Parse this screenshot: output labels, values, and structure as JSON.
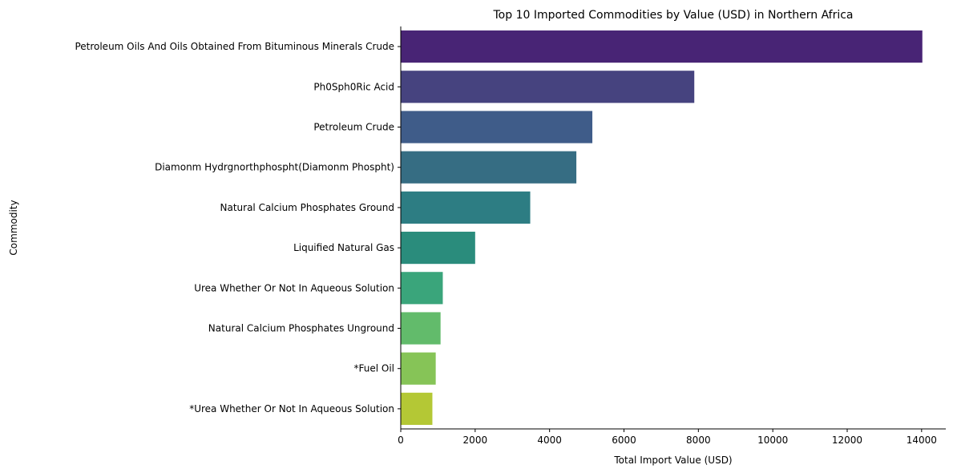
{
  "chart_data": {
    "type": "bar",
    "orientation": "horizontal",
    "title": "Top 10 Imported Commodities by Value (USD) in Northern Africa",
    "xlabel": "Total Import Value (USD)",
    "ylabel": "Commodity",
    "xlim": [
      0,
      14650
    ],
    "x_ticks": [
      0,
      2000,
      4000,
      6000,
      8000,
      10000,
      12000,
      14000
    ],
    "grid": false,
    "legend": false,
    "categories": [
      "Petroleum Oils And Oils Obtained From Bituminous Minerals Crude",
      "Ph0Sph0Ric Acid",
      "Petroleum Crude",
      "Diamonm Hydrgnorthphospht(Diamonm Phospht)",
      "Natural Calcium Phosphates Ground",
      "Liquified Natural Gas",
      "Urea Whether Or Not In Aqueous Solution",
      "Natural Calcium Phosphates Unground",
      "*Fuel Oil",
      "*Urea Whether Or Not In Aqueous Solution"
    ],
    "values": [
      14020,
      7890,
      5150,
      4720,
      3480,
      2000,
      1130,
      1070,
      940,
      850
    ],
    "colors": [
      "#482475",
      "#46437f",
      "#3f5c89",
      "#366d83",
      "#2d7d83",
      "#2a8c7c",
      "#3aa57b",
      "#62bb6b",
      "#86c457",
      "#b4c835"
    ]
  }
}
